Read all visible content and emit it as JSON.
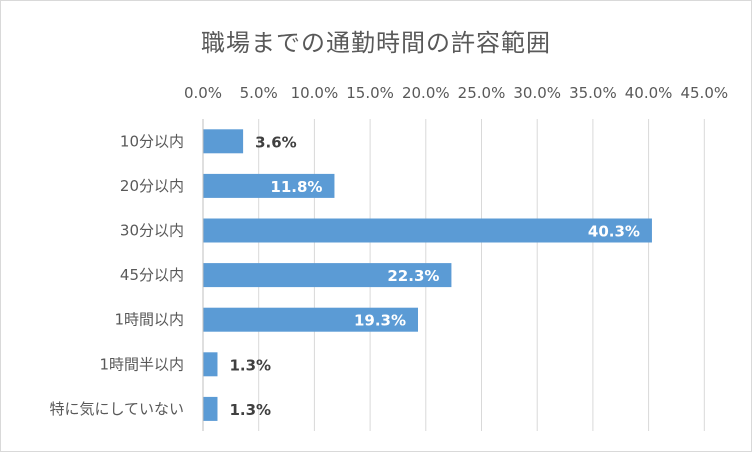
{
  "chart_data": {
    "type": "bar",
    "orientation": "horizontal",
    "title": "職場までの通勤時間の許容範囲",
    "categories": [
      "10分以内",
      "20分以内",
      "30分以内",
      "45分以内",
      "1時間以内",
      "1時間半以内",
      "特に気にしていない"
    ],
    "values": [
      3.6,
      11.8,
      40.3,
      22.3,
      19.3,
      1.3,
      1.3
    ],
    "value_labels": [
      "3.6%",
      "11.8%",
      "40.3%",
      "22.3%",
      "19.3%",
      "1.3%",
      "1.3%"
    ],
    "xticks": [
      "0.0%",
      "5.0%",
      "10.0%",
      "15.0%",
      "20.0%",
      "25.0%",
      "30.0%",
      "35.0%",
      "40.0%",
      "45.0%"
    ],
    "xlim": [
      0,
      45
    ],
    "x_axis_position": "top",
    "grid": true,
    "legend": "none",
    "bar_color": "#5b9bd5"
  }
}
